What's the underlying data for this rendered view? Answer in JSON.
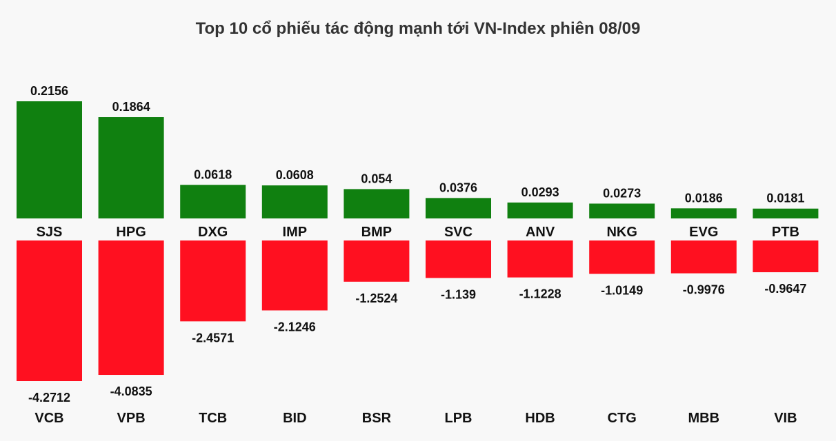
{
  "chart_data": {
    "type": "bar",
    "title": "Top 10 cổ phiếu tác động mạnh tới VN-Index phiên 08/09",
    "xlabel": "",
    "ylabel": "",
    "series": [
      {
        "color": "#108010",
        "categories": [
          "SJS",
          "HPG",
          "DXG",
          "IMP",
          "BMP",
          "SVC",
          "ANV",
          "NKG",
          "EVG",
          "PTB"
        ],
        "values": [
          0.2156,
          0.1864,
          0.0618,
          0.0608,
          0.054,
          0.0376,
          0.0293,
          0.0273,
          0.0186,
          0.0181
        ],
        "labels": [
          "0.2156",
          "0.1864",
          "0.0618",
          "0.0608",
          "0.054",
          "0.0376",
          "0.0293",
          "0.0273",
          "0.0186",
          "0.0181"
        ]
      },
      {
        "color": "#ff1020",
        "categories": [
          "VCB",
          "VPB",
          "TCB",
          "BID",
          "BSR",
          "LPB",
          "HDB",
          "CTG",
          "MBB",
          "VIB"
        ],
        "values": [
          -4.2712,
          -4.0835,
          -2.4571,
          -2.1246,
          -1.2524,
          -1.139,
          -1.1228,
          -1.0149,
          -0.9976,
          -0.9647
        ],
        "labels": [
          "-4.2712",
          "-4.0835",
          "-2.4571",
          "-2.1246",
          "-1.2524",
          "-1.139",
          "-1.1228",
          "-1.0149",
          "-0.9976",
          "-0.9647"
        ]
      }
    ]
  }
}
